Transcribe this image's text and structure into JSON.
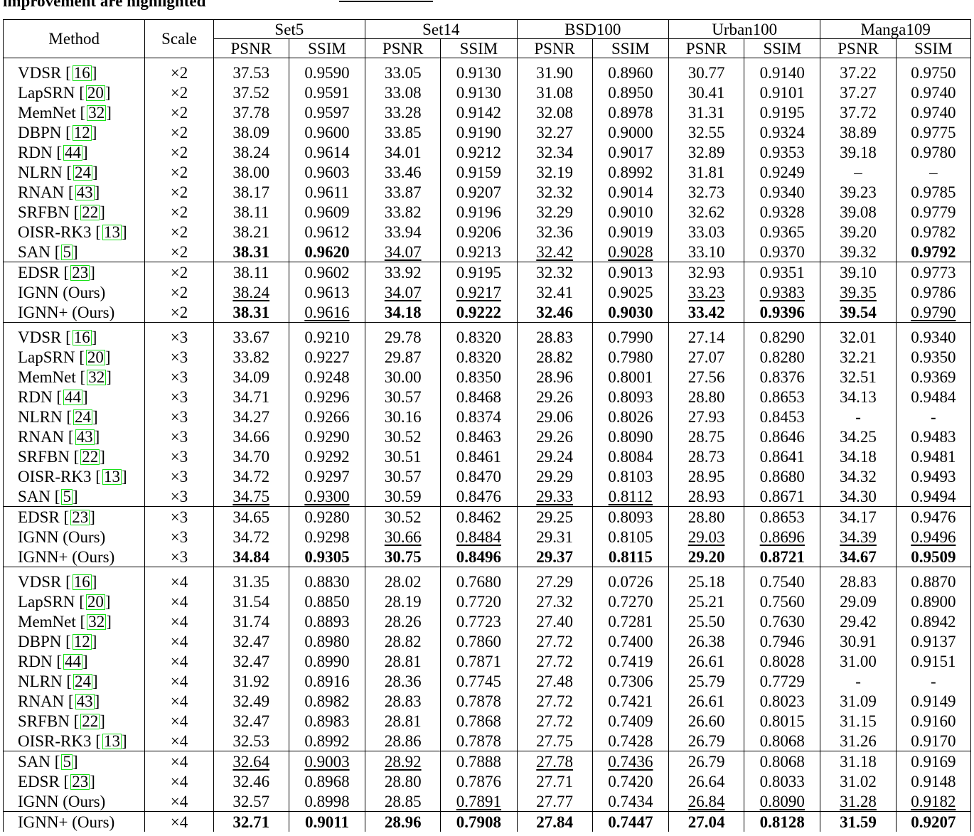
{
  "caption_fragment": "improvement are highlighted",
  "header": {
    "method": "Method",
    "scale": "Scale",
    "datasets": [
      "Set5",
      "Set14",
      "BSD100",
      "Urban100",
      "Manga109"
    ],
    "metrics": [
      "PSNR",
      "SSIM"
    ]
  },
  "rows": [
    {
      "m": "VDSR",
      "c": "16",
      "s": "×2",
      "v": [
        "37.53",
        "0.9590",
        "33.05",
        "0.9130",
        "31.90",
        "0.8960",
        "30.77",
        "0.9140",
        "37.22",
        "0.9750"
      ],
      "b": [],
      "u": []
    },
    {
      "m": "LapSRN",
      "c": "20",
      "s": "×2",
      "v": [
        "37.52",
        "0.9591",
        "33.08",
        "0.9130",
        "31.08",
        "0.8950",
        "30.41",
        "0.9101",
        "37.27",
        "0.9740"
      ],
      "b": [],
      "u": []
    },
    {
      "m": "MemNet",
      "c": "32",
      "s": "×2",
      "v": [
        "37.78",
        "0.9597",
        "33.28",
        "0.9142",
        "32.08",
        "0.8978",
        "31.31",
        "0.9195",
        "37.72",
        "0.9740"
      ],
      "b": [],
      "u": []
    },
    {
      "m": "DBPN",
      "c": "12",
      "s": "×2",
      "v": [
        "38.09",
        "0.9600",
        "33.85",
        "0.9190",
        "32.27",
        "0.9000",
        "32.55",
        "0.9324",
        "38.89",
        "0.9775"
      ],
      "b": [],
      "u": []
    },
    {
      "m": "RDN",
      "c": "44",
      "s": "×2",
      "v": [
        "38.24",
        "0.9614",
        "34.01",
        "0.9212",
        "32.34",
        "0.9017",
        "32.89",
        "0.9353",
        "39.18",
        "0.9780"
      ],
      "b": [],
      "u": []
    },
    {
      "m": "NLRN",
      "c": "24",
      "s": "×2",
      "v": [
        "38.00",
        "0.9603",
        "33.46",
        "0.9159",
        "32.19",
        "0.8992",
        "31.81",
        "0.9249",
        "–",
        "–"
      ],
      "b": [],
      "u": []
    },
    {
      "m": "RNAN",
      "c": "43",
      "s": "×2",
      "v": [
        "38.17",
        "0.9611",
        "33.87",
        "0.9207",
        "32.32",
        "0.9014",
        "32.73",
        "0.9340",
        "39.23",
        "0.9785"
      ],
      "b": [],
      "u": []
    },
    {
      "m": "SRFBN",
      "c": "22",
      "s": "×2",
      "v": [
        "38.11",
        "0.9609",
        "33.82",
        "0.9196",
        "32.29",
        "0.9010",
        "32.62",
        "0.9328",
        "39.08",
        "0.9779"
      ],
      "b": [],
      "u": []
    },
    {
      "m": "OISR-RK3",
      "c": "13",
      "s": "×2",
      "v": [
        "38.21",
        "0.9612",
        "33.94",
        "0.9206",
        "32.36",
        "0.9019",
        "33.03",
        "0.9365",
        "39.20",
        "0.9782"
      ],
      "b": [],
      "u": []
    },
    {
      "m": "SAN",
      "c": "5",
      "s": "×2",
      "v": [
        "38.31",
        "0.9620",
        "34.07",
        "0.9213",
        "32.42",
        "0.9028",
        "33.10",
        "0.9370",
        "39.32",
        "0.9792"
      ],
      "b": [
        0,
        1,
        9
      ],
      "u": [
        2,
        4,
        5
      ]
    },
    {
      "m": "EDSR",
      "c": "23",
      "s": "×2",
      "v": [
        "38.11",
        "0.9602",
        "33.92",
        "0.9195",
        "32.32",
        "0.9013",
        "32.93",
        "0.9351",
        "39.10",
        "0.9773"
      ],
      "b": [],
      "u": []
    },
    {
      "m": "IGNN (Ours)",
      "c": "",
      "s": "×2",
      "v": [
        "38.24",
        "0.9613",
        "34.07",
        "0.9217",
        "32.41",
        "0.9025",
        "33.23",
        "0.9383",
        "39.35",
        "0.9786"
      ],
      "b": [],
      "u": [
        0,
        2,
        3,
        6,
        7,
        8
      ]
    },
    {
      "m": "IGNN+ (Ours)",
      "c": "",
      "s": "×2",
      "v": [
        "38.31",
        "0.9616",
        "34.18",
        "0.9222",
        "32.46",
        "0.9030",
        "33.42",
        "0.9396",
        "39.54",
        "0.9790"
      ],
      "b": [
        0,
        2,
        3,
        4,
        5,
        6,
        7,
        8
      ],
      "u": [
        1,
        9
      ]
    },
    {
      "m": "VDSR",
      "c": "16",
      "s": "×3",
      "v": [
        "33.67",
        "0.9210",
        "29.78",
        "0.8320",
        "28.83",
        "0.7990",
        "27.14",
        "0.8290",
        "32.01",
        "0.9340"
      ],
      "b": [],
      "u": []
    },
    {
      "m": "LapSRN",
      "c": "20",
      "s": "×3",
      "v": [
        "33.82",
        "0.9227",
        "29.87",
        "0.8320",
        "28.82",
        "0.7980",
        "27.07",
        "0.8280",
        "32.21",
        "0.9350"
      ],
      "b": [],
      "u": []
    },
    {
      "m": "MemNet",
      "c": "32",
      "s": "×3",
      "v": [
        "34.09",
        "0.9248",
        "30.00",
        "0.8350",
        "28.96",
        "0.8001",
        "27.56",
        "0.8376",
        "32.51",
        "0.9369"
      ],
      "b": [],
      "u": []
    },
    {
      "m": "RDN",
      "c": "44",
      "s": "×3",
      "v": [
        "34.71",
        "0.9296",
        "30.57",
        "0.8468",
        "29.26",
        "0.8093",
        "28.80",
        "0.8653",
        "34.13",
        "0.9484"
      ],
      "b": [],
      "u": []
    },
    {
      "m": "NLRN",
      "c": "24",
      "s": "×3",
      "v": [
        "34.27",
        "0.9266",
        "30.16",
        "0.8374",
        "29.06",
        "0.8026",
        "27.93",
        "0.8453",
        "-",
        "-"
      ],
      "b": [],
      "u": []
    },
    {
      "m": "RNAN",
      "c": "43",
      "s": "×3",
      "v": [
        "34.66",
        "0.9290",
        "30.52",
        "0.8463",
        "29.26",
        "0.8090",
        "28.75",
        "0.8646",
        "34.25",
        "0.9483"
      ],
      "b": [],
      "u": []
    },
    {
      "m": "SRFBN",
      "c": "22",
      "s": "×3",
      "v": [
        "34.70",
        "0.9292",
        "30.51",
        "0.8461",
        "29.24",
        "0.8084",
        "28.73",
        "0.8641",
        "34.18",
        "0.9481"
      ],
      "b": [],
      "u": []
    },
    {
      "m": "OISR-RK3",
      "c": "13",
      "s": "×3",
      "v": [
        "34.72",
        "0.9297",
        "30.57",
        "0.8470",
        "29.29",
        "0.8103",
        "28.95",
        "0.8680",
        "34.32",
        "0.9493"
      ],
      "b": [],
      "u": []
    },
    {
      "m": "SAN",
      "c": "5",
      "s": "×3",
      "v": [
        "34.75",
        "0.9300",
        "30.59",
        "0.8476",
        "29.33",
        "0.8112",
        "28.93",
        "0.8671",
        "34.30",
        "0.9494"
      ],
      "b": [],
      "u": [
        0,
        1,
        4,
        5
      ]
    },
    {
      "m": "EDSR",
      "c": "23",
      "s": "×3",
      "v": [
        "34.65",
        "0.9280",
        "30.52",
        "0.8462",
        "29.25",
        "0.8093",
        "28.80",
        "0.8653",
        "34.17",
        "0.9476"
      ],
      "b": [],
      "u": []
    },
    {
      "m": "IGNN (Ours)",
      "c": "",
      "s": "×3",
      "v": [
        "34.72",
        "0.9298",
        "30.66",
        "0.8484",
        "29.31",
        "0.8105",
        "29.03",
        "0.8696",
        "34.39",
        "0.9496"
      ],
      "b": [],
      "u": [
        2,
        3,
        6,
        7,
        8,
        9
      ]
    },
    {
      "m": "IGNN+ (Ours)",
      "c": "",
      "s": "×3",
      "v": [
        "34.84",
        "0.9305",
        "30.75",
        "0.8496",
        "29.37",
        "0.8115",
        "29.20",
        "0.8721",
        "34.67",
        "0.9509"
      ],
      "b": [
        0,
        1,
        2,
        3,
        4,
        5,
        6,
        7,
        8,
        9
      ],
      "u": []
    },
    {
      "m": "VDSR",
      "c": "16",
      "s": "×4",
      "v": [
        "31.35",
        "0.8830",
        "28.02",
        "0.7680",
        "27.29",
        "0.0726",
        "25.18",
        "0.7540",
        "28.83",
        "0.8870"
      ],
      "b": [],
      "u": []
    },
    {
      "m": "LapSRN",
      "c": "20",
      "s": "×4",
      "v": [
        "31.54",
        "0.8850",
        "28.19",
        "0.7720",
        "27.32",
        "0.7270",
        "25.21",
        "0.7560",
        "29.09",
        "0.8900"
      ],
      "b": [],
      "u": []
    },
    {
      "m": "MemNet",
      "c": "32",
      "s": "×4",
      "v": [
        "31.74",
        "0.8893",
        "28.26",
        "0.7723",
        "27.40",
        "0.7281",
        "25.50",
        "0.7630",
        "29.42",
        "0.8942"
      ],
      "b": [],
      "u": []
    },
    {
      "m": "DBPN",
      "c": "12",
      "s": "×4",
      "v": [
        "32.47",
        "0.8980",
        "28.82",
        "0.7860",
        "27.72",
        "0.7400",
        "26.38",
        "0.7946",
        "30.91",
        "0.9137"
      ],
      "b": [],
      "u": []
    },
    {
      "m": "RDN",
      "c": "44",
      "s": "×4",
      "v": [
        "32.47",
        "0.8990",
        "28.81",
        "0.7871",
        "27.72",
        "0.7419",
        "26.61",
        "0.8028",
        "31.00",
        "0.9151"
      ],
      "b": [],
      "u": []
    },
    {
      "m": "NLRN",
      "c": "24",
      "s": "×4",
      "v": [
        "31.92",
        "0.8916",
        "28.36",
        "0.7745",
        "27.48",
        "0.7306",
        "25.79",
        "0.7729",
        "-",
        "-"
      ],
      "b": [],
      "u": []
    },
    {
      "m": "RNAN",
      "c": "43",
      "s": "×4",
      "v": [
        "32.49",
        "0.8982",
        "28.83",
        "0.7878",
        "27.72",
        "0.7421",
        "26.61",
        "0.8023",
        "31.09",
        "0.9149"
      ],
      "b": [],
      "u": []
    },
    {
      "m": "SRFBN",
      "c": "22",
      "s": "×4",
      "v": [
        "32.47",
        "0.8983",
        "28.81",
        "0.7868",
        "27.72",
        "0.7409",
        "26.60",
        "0.8015",
        "31.15",
        "0.9160"
      ],
      "b": [],
      "u": []
    },
    {
      "m": "OISR-RK3",
      "c": "13",
      "s": "×4",
      "v": [
        "32.53",
        "0.8992",
        "28.86",
        "0.7878",
        "27.75",
        "0.7428",
        "26.79",
        "0.8068",
        "31.26",
        "0.9170"
      ],
      "b": [],
      "u": []
    },
    {
      "m": "SAN",
      "c": "5",
      "s": "×4",
      "v": [
        "32.64",
        "0.9003",
        "28.92",
        "0.7888",
        "27.78",
        "0.7436",
        "26.79",
        "0.8068",
        "31.18",
        "0.9169"
      ],
      "b": [],
      "u": [
        0,
        1,
        2,
        4,
        5
      ]
    },
    {
      "m": "EDSR",
      "c": "23",
      "s": "×4",
      "v": [
        "32.46",
        "0.8968",
        "28.80",
        "0.7876",
        "27.71",
        "0.7420",
        "26.64",
        "0.8033",
        "31.02",
        "0.9148"
      ],
      "b": [],
      "u": []
    },
    {
      "m": "IGNN (Ours)",
      "c": "",
      "s": "×4",
      "v": [
        "32.57",
        "0.8998",
        "28.85",
        "0.7891",
        "27.77",
        "0.7434",
        "26.84",
        "0.8090",
        "31.28",
        "0.9182"
      ],
      "b": [],
      "u": [
        3,
        6,
        7,
        8,
        9
      ]
    },
    {
      "m": "IGNN+ (Ours)",
      "c": "",
      "s": "×4",
      "v": [
        "32.71",
        "0.9011",
        "28.96",
        "0.7908",
        "27.84",
        "0.7447",
        "27.04",
        "0.8128",
        "31.59",
        "0.9207"
      ],
      "b": [
        0,
        1,
        2,
        3,
        4,
        5,
        6,
        7,
        8,
        9
      ],
      "u": []
    }
  ]
}
